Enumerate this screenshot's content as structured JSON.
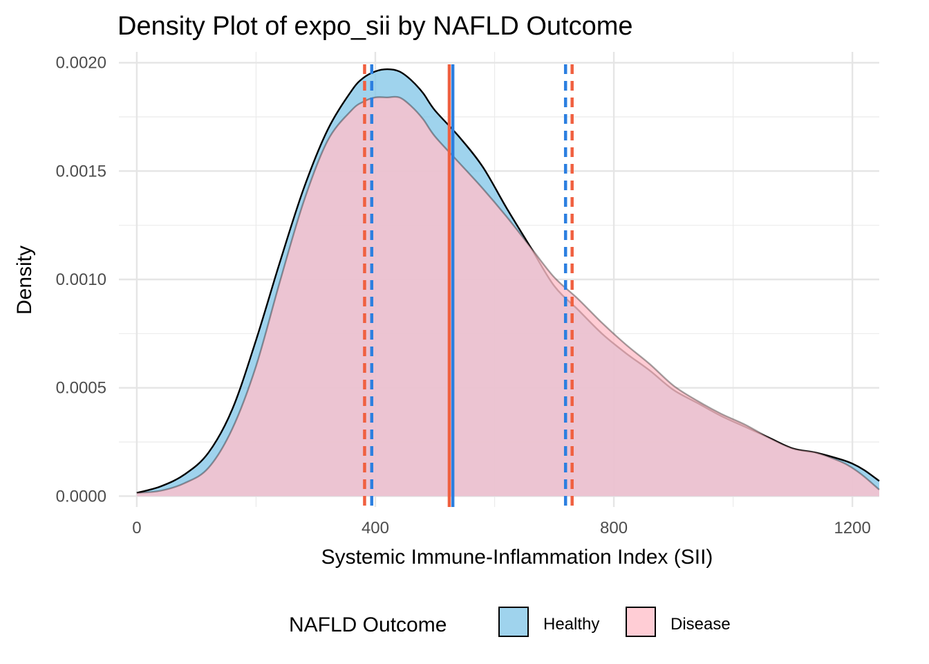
{
  "chart_data": {
    "type": "area",
    "title": "Density Plot of expo_sii by NAFLD Outcome",
    "xlabel": "Systemic Immune-Inflammation Index (SII)",
    "ylabel": "Density",
    "xlim": [
      -30,
      1245
    ],
    "ylim": [
      -5e-05,
      0.00205
    ],
    "x_ticks": [
      0,
      400,
      800,
      1200
    ],
    "x_tick_labels": [
      "0",
      "400",
      "800",
      "1200"
    ],
    "y_ticks": [
      0,
      0.0005,
      0.001,
      0.0015,
      0.002
    ],
    "y_tick_labels": [
      "0.0000",
      "0.0005",
      "0.0010",
      "0.0015",
      "0.0020"
    ],
    "grid": true,
    "legend_position": "bottom",
    "legend_title": "NAFLD Outcome",
    "series": [
      {
        "name": "Healthy",
        "fill": "#87c8e8",
        "line_color": "#2c7fe0",
        "x": [
          0,
          40,
          80,
          120,
          160,
          200,
          240,
          280,
          320,
          360,
          380,
          400,
          420,
          440,
          460,
          480,
          500,
          540,
          580,
          620,
          660,
          700,
          740,
          780,
          820,
          860,
          900,
          940,
          980,
          1020,
          1060,
          1100,
          1140,
          1180,
          1200,
          1220,
          1245
        ],
        "values": [
          1.5e-05,
          4.5e-05,
          0.0001,
          0.0002,
          0.0004,
          0.00072,
          0.00108,
          0.00142,
          0.00169,
          0.00187,
          0.00193,
          0.00196,
          0.00197,
          0.00196,
          0.00192,
          0.00186,
          0.00178,
          0.00166,
          0.00152,
          0.00133,
          0.00115,
          0.00097,
          0.00086,
          0.00075,
          0.00066,
          0.00058,
          0.00049,
          0.00043,
          0.00037,
          0.00032,
          0.00027,
          0.00022,
          0.0002,
          0.00017,
          0.00015,
          0.00012,
          7e-05
        ],
        "q1": 394,
        "median": 530,
        "q3": 719
      },
      {
        "name": "Disease",
        "fill": "#ffc0cb",
        "line_color": "#f06040",
        "x": [
          0,
          40,
          80,
          120,
          160,
          200,
          240,
          280,
          320,
          360,
          380,
          400,
          420,
          440,
          460,
          480,
          500,
          540,
          580,
          620,
          660,
          700,
          740,
          780,
          820,
          860,
          900,
          940,
          980,
          1020,
          1060,
          1100,
          1140,
          1180,
          1200,
          1220,
          1245
        ],
        "values": [
          1.5e-05,
          2.5e-05,
          6e-05,
          0.00013,
          0.00031,
          0.0006,
          0.00099,
          0.00136,
          0.00164,
          0.00178,
          0.00182,
          0.00184,
          0.00184,
          0.00184,
          0.0018,
          0.00174,
          0.00166,
          0.00154,
          0.00142,
          0.00129,
          0.00115,
          0.00101,
          0.00091,
          0.0008,
          0.0007,
          0.00061,
          0.00051,
          0.00044,
          0.00038,
          0.00033,
          0.00027,
          0.00022,
          0.0002,
          0.00016,
          0.00013,
          9e-05,
          3e-05
        ],
        "q1": 382,
        "median": 524,
        "q3": 730
      }
    ]
  }
}
